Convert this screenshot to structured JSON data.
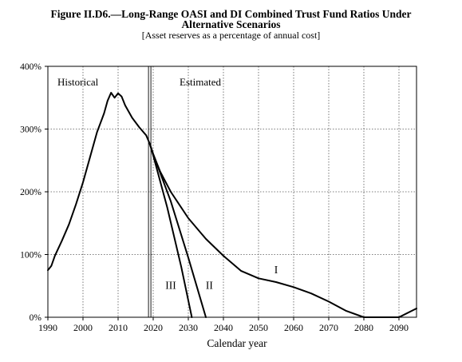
{
  "chart_data": {
    "type": "line",
    "title": "Figure II.D6.—Long-Range OASI and DI Combined Trust Fund Ratios Under",
    "title_line2": "Alternative Scenarios",
    "subtitle": "[Asset reserves as a percentage of annual cost]",
    "xlabel": "Calendar year",
    "ylabel": "",
    "xlim": [
      1990,
      2095
    ],
    "ylim": [
      0,
      400
    ],
    "x_ticks": [
      "1990",
      "2000",
      "2010",
      "2020",
      "2030",
      "2040",
      "2050",
      "2060",
      "2070",
      "2080",
      "2090"
    ],
    "y_ticks": [
      "0%",
      "100%",
      "200%",
      "300%",
      "400%"
    ],
    "grid": true,
    "divider_year": 2019,
    "region_labels": {
      "historical": "Historical",
      "estimated": "Estimated"
    },
    "series": [
      {
        "name": "Historical",
        "label": "",
        "x": [
          1990,
          1991,
          1992,
          1994,
          1996,
          1998,
          2000,
          2002,
          2004,
          2006,
          2007,
          2008,
          2009,
          2010,
          2011,
          2012,
          2014,
          2016,
          2018,
          2019
        ],
        "y": [
          75,
          82,
          98,
          122,
          148,
          180,
          215,
          255,
          295,
          325,
          345,
          358,
          350,
          357,
          352,
          338,
          318,
          303,
          290,
          277
        ]
      },
      {
        "name": "I",
        "label": "I",
        "x": [
          2019,
          2020,
          2022,
          2025,
          2030,
          2035,
          2040,
          2045,
          2050,
          2055,
          2060,
          2065,
          2070,
          2075,
          2080,
          2085,
          2090,
          2095
        ],
        "y": [
          277,
          260,
          232,
          200,
          158,
          125,
          98,
          74,
          62,
          56,
          48,
          38,
          25,
          10,
          0,
          0,
          0,
          14
        ]
      },
      {
        "name": "II",
        "label": "II",
        "x": [
          2019,
          2020,
          2025,
          2030,
          2035
        ],
        "y": [
          277,
          260,
          185,
          95,
          0
        ]
      },
      {
        "name": "III",
        "label": "III",
        "x": [
          2019,
          2020,
          2024,
          2028,
          2031
        ],
        "y": [
          277,
          258,
          175,
          80,
          0
        ]
      }
    ]
  }
}
